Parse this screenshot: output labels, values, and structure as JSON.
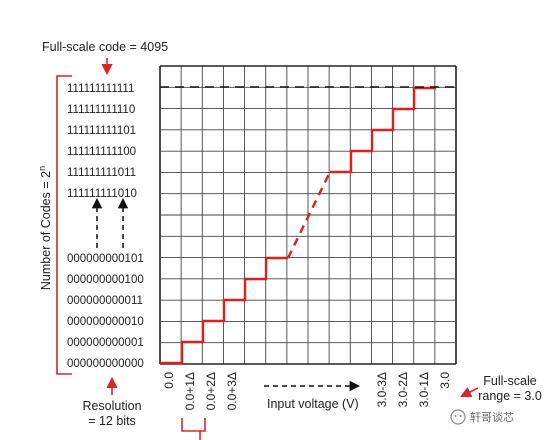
{
  "header": {
    "full_scale_code": "Full-scale code = 4095"
  },
  "y_axis": {
    "label_main": "Number of Codes = 2",
    "label_exp": "n",
    "codes_top": [
      "111111111111",
      "111111111110",
      "111111111101",
      "111111111100",
      "111111111011",
      "111111111010"
    ],
    "codes_bottom": [
      "000000000101",
      "000000000100",
      "000000000011",
      "000000000010",
      "000000000001",
      "000000000000"
    ]
  },
  "x_axis": {
    "ticks_left": [
      "0.0",
      "0.0+1Δ",
      "0.0+2Δ",
      "0.0+3Δ"
    ],
    "ticks_right": [
      "3.0-3Δ",
      "3.0-2Δ",
      "3.0-1Δ",
      "3.0"
    ],
    "label": "Input voltage (V)"
  },
  "resolution": {
    "line1": "Resolution",
    "line2": "= 12 bits"
  },
  "full_scale_range": {
    "line1": "Full-scale",
    "line2": "range = 3.0"
  },
  "watermark": {
    "text": "轩哥谈芯"
  },
  "colors": {
    "staircase": "#dd1f1f",
    "arrow": "#d8272b",
    "grid": "#444444",
    "frame": "#222222"
  }
}
